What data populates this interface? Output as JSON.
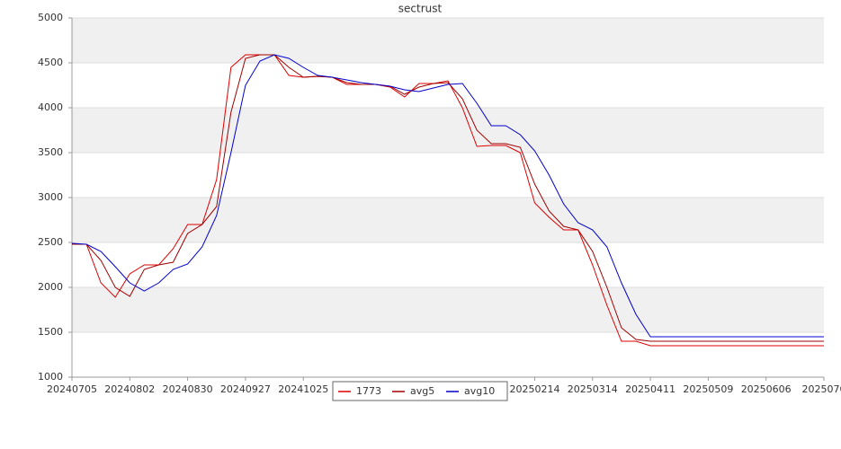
{
  "chart_data": {
    "type": "line",
    "title": "sectrust",
    "categories": [
      "20240705",
      null,
      null,
      null,
      "20240802",
      null,
      null,
      null,
      "20240830",
      null,
      null,
      null,
      "20240927",
      null,
      null,
      null,
      "20241025",
      null,
      null,
      null,
      null,
      null,
      null,
      null,
      null,
      null,
      null,
      null,
      null,
      null,
      null,
      null,
      "20250214",
      null,
      null,
      null,
      "20250314",
      null,
      null,
      null,
      "20250411",
      null,
      null,
      null,
      "20250509",
      null,
      null,
      null,
      "20250606",
      null,
      null,
      null,
      "2025070"
    ],
    "series": [
      {
        "name": "1773",
        "color": "#dd0000",
        "values": [
          2480,
          2480,
          2050,
          1890,
          2150,
          2250,
          2250,
          2430,
          2700,
          2700,
          3200,
          4450,
          4590,
          4590,
          4590,
          4360,
          4340,
          4350,
          4340,
          4260,
          4260,
          4260,
          4230,
          4120,
          4270,
          4270,
          4300,
          4000,
          3570,
          3580,
          3580,
          3500,
          2940,
          2780,
          2640,
          2640,
          2250,
          1800,
          1400,
          1400,
          1350,
          1350,
          1350,
          1350,
          1350,
          1350,
          1350,
          1350,
          1350,
          1350,
          1350,
          1350,
          1350
        ]
      },
      {
        "name": "avg5",
        "color": "#a00000",
        "values": [
          2480,
          2480,
          2300,
          2000,
          1900,
          2200,
          2250,
          2280,
          2600,
          2700,
          2900,
          3950,
          4550,
          4590,
          4590,
          4450,
          4340,
          4350,
          4340,
          4280,
          4260,
          4260,
          4240,
          4150,
          4230,
          4270,
          4280,
          4100,
          3750,
          3600,
          3600,
          3560,
          3150,
          2850,
          2680,
          2640,
          2400,
          2000,
          1550,
          1420,
          1400,
          1400,
          1400,
          1400,
          1400,
          1400,
          1400,
          1400,
          1400,
          1400,
          1400,
          1400,
          1400
        ]
      },
      {
        "name": "avg10",
        "color": "#0000cc",
        "values": [
          2490,
          2480,
          2400,
          2230,
          2050,
          1960,
          2050,
          2200,
          2260,
          2450,
          2800,
          3500,
          4250,
          4520,
          4590,
          4550,
          4450,
          4360,
          4340,
          4310,
          4280,
          4260,
          4240,
          4200,
          4180,
          4220,
          4260,
          4270,
          4050,
          3800,
          3800,
          3700,
          3520,
          3250,
          2930,
          2720,
          2640,
          2450,
          2050,
          1700,
          1450,
          1450,
          1450,
          1450,
          1450,
          1450,
          1450,
          1450,
          1450,
          1450,
          1450,
          1450,
          1450
        ]
      }
    ],
    "ylim": [
      1000,
      5000
    ],
    "yticks": [
      1000,
      1500,
      2000,
      2500,
      3000,
      3500,
      4000,
      4500,
      5000
    ],
    "grid": true,
    "legend": "bottom"
  }
}
